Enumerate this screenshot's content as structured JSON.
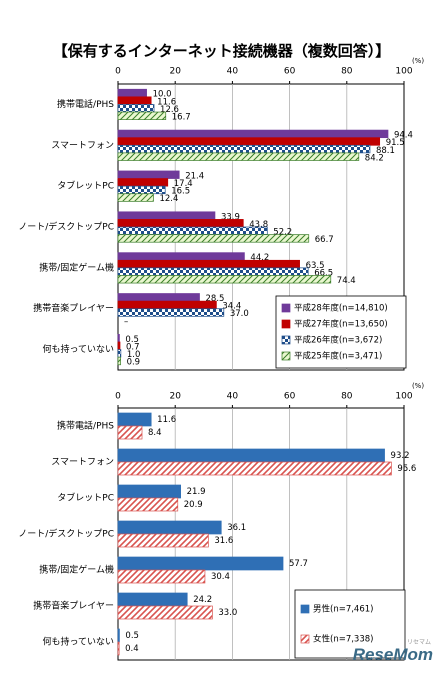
{
  "title": "【保有するインターネット接続機器（複数回答）】",
  "watermark": "ReseMom",
  "watermark_sub": "リセマム",
  "chart_data": [
    {
      "type": "bar",
      "orientation": "horizontal",
      "unit_label": "(%)",
      "xlim": [
        0,
        100
      ],
      "ticks": [
        0,
        20,
        40,
        60,
        80,
        100
      ],
      "grid": true,
      "legend_placement": "bottom-right",
      "categories": [
        "携帯電話/PHS",
        "スマートフォン",
        "タブレットPC",
        "ノート/デスクトップPC",
        "携帯/固定ゲーム機",
        "携帯音楽プレイヤー",
        "何も持っていない"
      ],
      "series": [
        {
          "name": "平成28年度(n=14,810)",
          "color": "#6f3a9a",
          "pattern": "solid",
          "values": [
            10.0,
            94.4,
            21.4,
            33.9,
            44.2,
            28.5,
            0.5
          ]
        },
        {
          "name": "平成27年度(n=13,650)",
          "color": "#c00000",
          "pattern": "solid",
          "values": [
            11.6,
            91.5,
            17.4,
            43.8,
            63.5,
            34.4,
            0.7
          ]
        },
        {
          "name": "平成26年度(n=3,672)",
          "color": "#1f4e8a",
          "pattern": "check",
          "values": [
            12.6,
            88.1,
            16.5,
            52.2,
            66.5,
            37.0,
            1.0
          ]
        },
        {
          "name": "平成25年度(n=3,471)",
          "color": "#3a7d28",
          "pattern": "diag",
          "values": [
            16.7,
            84.2,
            12.4,
            66.7,
            74.4,
            null,
            0.9
          ]
        }
      ],
      "value_labels": [
        [
          "10.0",
          "94.4",
          "21.4",
          "33.9",
          "44.2",
          "28.5",
          "0.5"
        ],
        [
          "11.6",
          "91.5",
          "17.4",
          "43.8",
          "63.5",
          "34.4",
          "0.7"
        ],
        [
          "12.6",
          "88.1",
          "16.5",
          "52.2",
          "66.5",
          "37.0",
          "1.0"
        ],
        [
          "16.7",
          "84.2",
          "12.4",
          "66.7",
          "74.4",
          "–",
          "0.9"
        ]
      ]
    },
    {
      "type": "bar",
      "orientation": "horizontal",
      "unit_label": "(%)",
      "xlim": [
        0,
        100
      ],
      "ticks": [
        0,
        20,
        40,
        60,
        80,
        100
      ],
      "grid": true,
      "legend_placement": "bottom-right",
      "categories": [
        "携帯電話/PHS",
        "スマートフォン",
        "タブレットPC",
        "ノート/デスクトップPC",
        "携帯/固定ゲーム機",
        "携帯音楽プレイヤー",
        "何も持っていない"
      ],
      "series": [
        {
          "name": "男性(n=7,461)",
          "color": "#2f6fb5",
          "pattern": "solid",
          "values": [
            11.6,
            93.2,
            21.9,
            36.1,
            57.7,
            24.2,
            0.5
          ]
        },
        {
          "name": "女性(n=7,338)",
          "color": "#d9534f",
          "pattern": "hatch",
          "values": [
            8.4,
            95.6,
            20.9,
            31.6,
            30.4,
            33.0,
            0.4
          ]
        }
      ],
      "value_labels": [
        [
          "11.6",
          "93.2",
          "21.9",
          "36.1",
          "57.7",
          "24.2",
          "0.5"
        ],
        [
          "8.4",
          "95.6",
          "20.9",
          "31.6",
          "30.4",
          "33.0",
          "0.4"
        ]
      ]
    }
  ]
}
